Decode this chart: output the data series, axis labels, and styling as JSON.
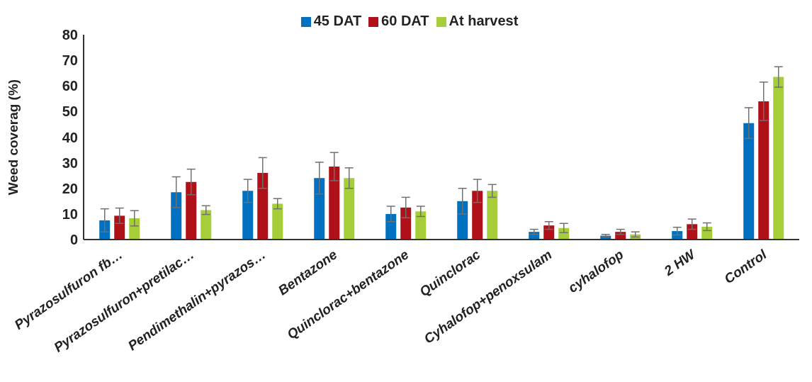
{
  "chart_data": {
    "type": "bar",
    "ylabel": "Weed coverag (%)",
    "categories": [
      "Pyrazosulfuron fb…",
      "Pyrazosulfuron+pretilac…",
      "Pendimethalin+pyrazos…",
      "Bentazone",
      "Quinclorac+bentazone",
      "Quinclorac",
      "Cyhalofop+penoxsulam",
      "cyhalofop",
      "2 HW",
      "Control"
    ],
    "series": [
      {
        "name": "45 DAT",
        "color": "#0070c0",
        "values": [
          7.5,
          18.5,
          19,
          24,
          10,
          15,
          3,
          1.5,
          3.3,
          45.5
        ],
        "errors": [
          4.5,
          6,
          4.5,
          6.2,
          3,
          5,
          1,
          0.5,
          1.5,
          6
        ]
      },
      {
        "name": "60 DAT",
        "color": "#b01018",
        "values": [
          9.3,
          22.5,
          26,
          28.5,
          12.5,
          19,
          5.5,
          3,
          6,
          54
        ],
        "errors": [
          3,
          5,
          6,
          5.5,
          4,
          4.5,
          1.5,
          1,
          2,
          7.5
        ]
      },
      {
        "name": "At harvest",
        "color": "#a6ce39",
        "values": [
          8.3,
          11.5,
          14,
          24,
          11,
          19,
          4.5,
          2,
          5,
          63.5
        ],
        "errors": [
          3,
          1.7,
          2,
          4,
          2,
          2.5,
          1.8,
          1,
          1.5,
          4
        ]
      }
    ],
    "ylim": [
      0,
      80
    ],
    "yticks": [
      0,
      10,
      20,
      30,
      40,
      50,
      60,
      70,
      80
    ],
    "grid": false,
    "legend": "top"
  }
}
